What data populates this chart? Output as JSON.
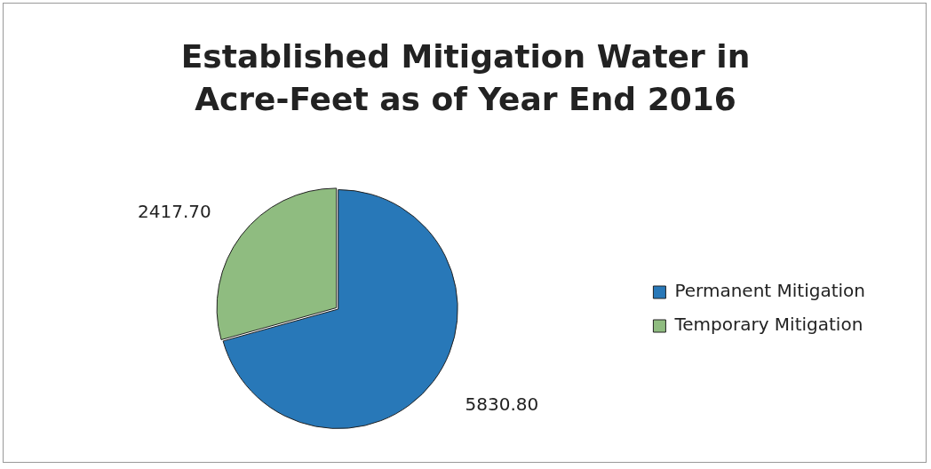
{
  "chart_data": {
    "type": "pie",
    "title": "Established Mitigation Water in Acre-Feet as of Year End 2016",
    "categories": [
      "Permanent Mitigation",
      "Temporary Mitigation"
    ],
    "values": [
      5830.8,
      2417.7
    ],
    "value_labels": [
      "5830.80",
      "2417.70"
    ],
    "colors": [
      "#2878b8",
      "#8fbc80"
    ],
    "legend": "right"
  }
}
